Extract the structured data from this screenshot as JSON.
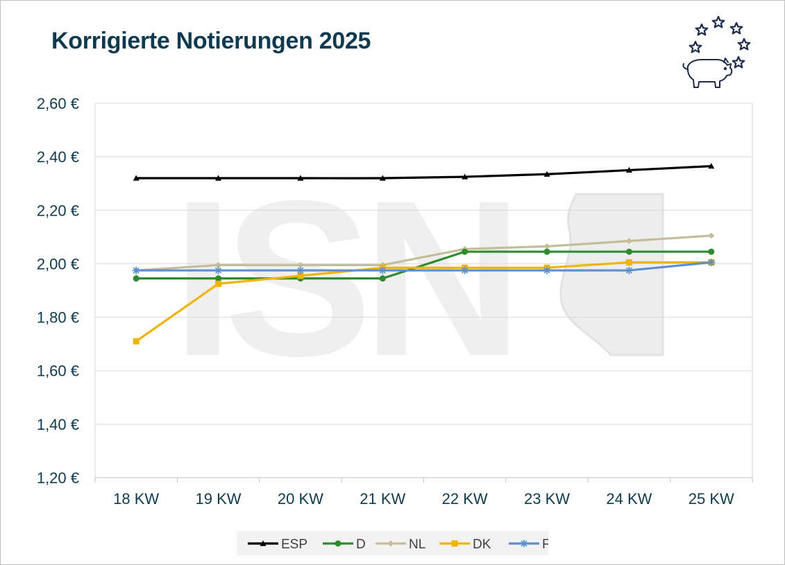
{
  "page": {
    "title": "Korrigierte Notierungen 2025"
  },
  "chart_data": {
    "type": "line",
    "title": "Korrigierte Notierungen 2025",
    "xlabel": "",
    "ylabel": "",
    "categories": [
      "18 KW",
      "19 KW",
      "20 KW",
      "21 KW",
      "22 KW",
      "23 KW",
      "24 KW",
      "25 KW"
    ],
    "ylim": [
      1.2,
      2.6
    ],
    "ytick_values": [
      1.2,
      1.4,
      1.6,
      1.8,
      2.0,
      2.2,
      2.4,
      2.6
    ],
    "ytick_labels": [
      "1,20 €",
      "1,40 €",
      "1,60 €",
      "1,80 €",
      "2,00 €",
      "2,20 €",
      "2,40 €",
      "2,60 €"
    ],
    "grid": "horizontal",
    "legend_position": "bottom",
    "watermark": "ISN",
    "series": [
      {
        "name": "ESP",
        "color": "#000000",
        "marker": "triangle",
        "smooth": true,
        "values": [
          2.32,
          2.32,
          2.32,
          2.32,
          2.325,
          2.335,
          2.35,
          2.365
        ]
      },
      {
        "name": "D",
        "color": "#2e8b2e",
        "marker": "circle",
        "smooth": false,
        "values": [
          1.945,
          1.945,
          1.945,
          1.945,
          2.045,
          2.045,
          2.045,
          2.045
        ]
      },
      {
        "name": "NL",
        "color": "#c4bd9a",
        "marker": "diamond",
        "smooth": false,
        "values": [
          1.975,
          1.995,
          1.995,
          1.995,
          2.055,
          2.065,
          2.085,
          2.105
        ]
      },
      {
        "name": "DK",
        "color": "#f0b400",
        "marker": "square",
        "smooth": false,
        "values": [
          1.71,
          1.925,
          1.955,
          1.985,
          1.985,
          1.985,
          2.005,
          2.005
        ]
      },
      {
        "name": "F",
        "color": "#5b8fd0",
        "marker": "star",
        "smooth": false,
        "values": [
          1.975,
          1.975,
          1.975,
          1.975,
          1.975,
          1.975,
          1.975,
          2.005
        ]
      }
    ]
  }
}
